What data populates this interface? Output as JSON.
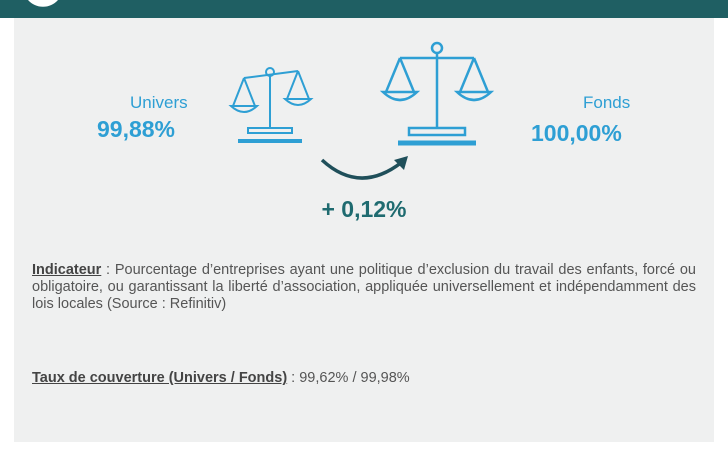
{
  "universe": {
    "label": "Univers",
    "value": "99,88%"
  },
  "fund": {
    "label": "Fonds",
    "value": "100,00%"
  },
  "difference": "+ 0,12%",
  "indicator": {
    "label": "Indicateur",
    "text": " : Pourcentage d’entreprises ayant une politique d’exclusion du travail des enfants, forcé ou obligatoire, ou garantissant la liberté d’association, appliquée universellement et indépendamment des lois locales (Source : Refinitiv)"
  },
  "coverage": {
    "label": "Taux de couverture (Univers / Fonds)",
    "text": " : 99,62% / 99,98%"
  }
}
